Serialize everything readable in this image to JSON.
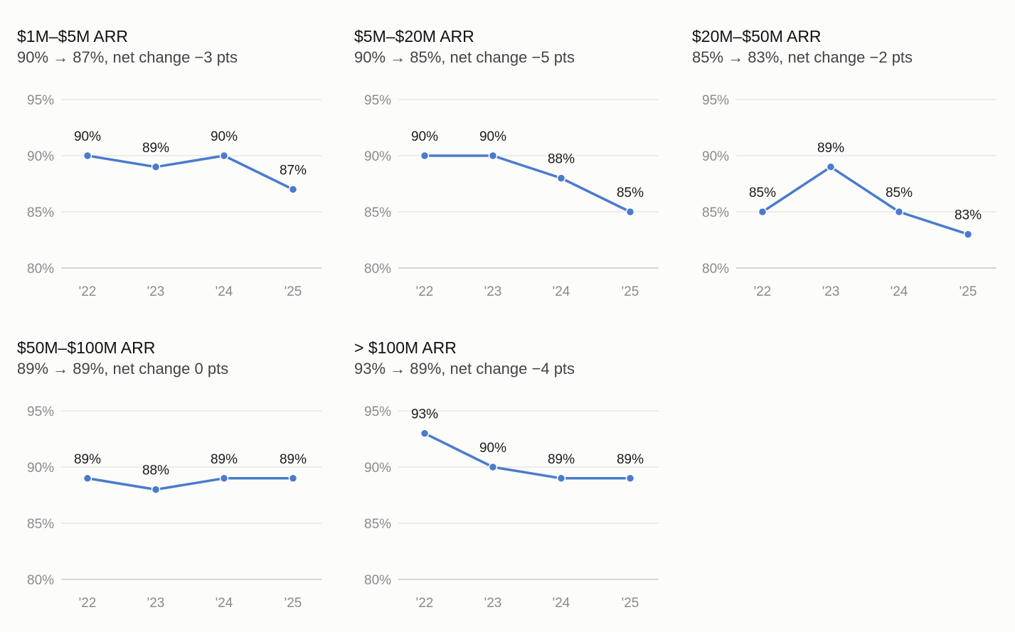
{
  "colors": {
    "line": "#4a7bcd",
    "grid": "#e3e3e1",
    "axis": "#c8c8c6"
  },
  "chart_data": [
    {
      "type": "line",
      "title": "$1M–$5M ARR",
      "subtitle": "90% → 87%, net change −3 pts",
      "x": [
        "'22",
        "'23",
        "'24",
        "'25"
      ],
      "values": [
        90,
        89,
        90,
        87
      ],
      "labels": [
        "90%",
        "89%",
        "90%",
        "87%"
      ],
      "yticks": [
        "95%",
        "90%",
        "85%",
        "80%"
      ],
      "ylim": [
        80,
        95
      ],
      "grid": true
    },
    {
      "type": "line",
      "title": "$5M–$20M ARR",
      "subtitle": "90% → 85%, net change −5 pts",
      "x": [
        "'22",
        "'23",
        "'24",
        "'25"
      ],
      "values": [
        90,
        90,
        88,
        85
      ],
      "labels": [
        "90%",
        "90%",
        "88%",
        "85%"
      ],
      "yticks": [
        "95%",
        "90%",
        "85%",
        "80%"
      ],
      "ylim": [
        80,
        95
      ],
      "grid": true
    },
    {
      "type": "line",
      "title": "$20M–$50M ARR",
      "subtitle": "85% → 83%, net change −2 pts",
      "x": [
        "'22",
        "'23",
        "'24",
        "'25"
      ],
      "values": [
        85,
        89,
        85,
        83
      ],
      "labels": [
        "85%",
        "89%",
        "85%",
        "83%"
      ],
      "yticks": [
        "95%",
        "90%",
        "85%",
        "80%"
      ],
      "ylim": [
        80,
        95
      ],
      "grid": true
    },
    {
      "type": "line",
      "title": "$50M–$100M ARR",
      "subtitle": "89% → 89%, net change 0 pts",
      "x": [
        "'22",
        "'23",
        "'24",
        "'25"
      ],
      "values": [
        89,
        88,
        89,
        89
      ],
      "labels": [
        "89%",
        "88%",
        "89%",
        "89%"
      ],
      "yticks": [
        "95%",
        "90%",
        "85%",
        "80%"
      ],
      "ylim": [
        80,
        95
      ],
      "grid": true
    },
    {
      "type": "line",
      "title": "> $100M ARR",
      "subtitle": "93% → 89%, net change −4 pts",
      "x": [
        "'22",
        "'23",
        "'24",
        "'25"
      ],
      "values": [
        93,
        90,
        89,
        89
      ],
      "labels": [
        "93%",
        "90%",
        "89%",
        "89%"
      ],
      "yticks": [
        "95%",
        "90%",
        "85%",
        "80%"
      ],
      "ylim": [
        80,
        95
      ],
      "grid": true
    }
  ]
}
